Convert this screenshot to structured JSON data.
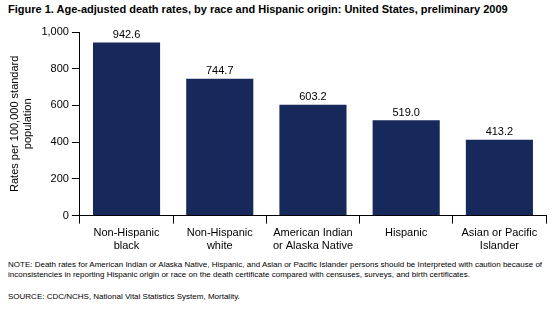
{
  "chart_data": {
    "type": "bar",
    "title": "Figure 1. Age-adjusted death rates, by race and Hispanic origin: United States, preliminary 2009",
    "y_label": "Rates per 100,000 standard population",
    "categories": [
      "Non-Hispanic black",
      "Non-Hispanic white",
      "American Indian or Alaska Native",
      "Hispanic",
      "Asian or Pacific Islander"
    ],
    "values": [
      942.6,
      744.7,
      603.2,
      519.0,
      413.2
    ],
    "value_labels": [
      "942.6",
      "744.7",
      "603.2",
      "519.0",
      "413.2"
    ],
    "data_labels": true,
    "color": "#17295a",
    "ylim": [
      0,
      1000
    ],
    "yticks": [
      0,
      200,
      400,
      600,
      800,
      {
        "value": 1000,
        "label": "1,000"
      }
    ],
    "grid": false,
    "note": "NOTE: Death rates for American Indian or Alaska Native, Hispanic, and Asian or Pacific Islander persons should be Interpreted with caution because of inconsistencies in reporting Hispanic origin or race on the death certificate compared with censuses, surveys, and birth certificates.",
    "source": "SOURCE: CDC/NCHS, National Vital Statistics System, Mortality."
  }
}
